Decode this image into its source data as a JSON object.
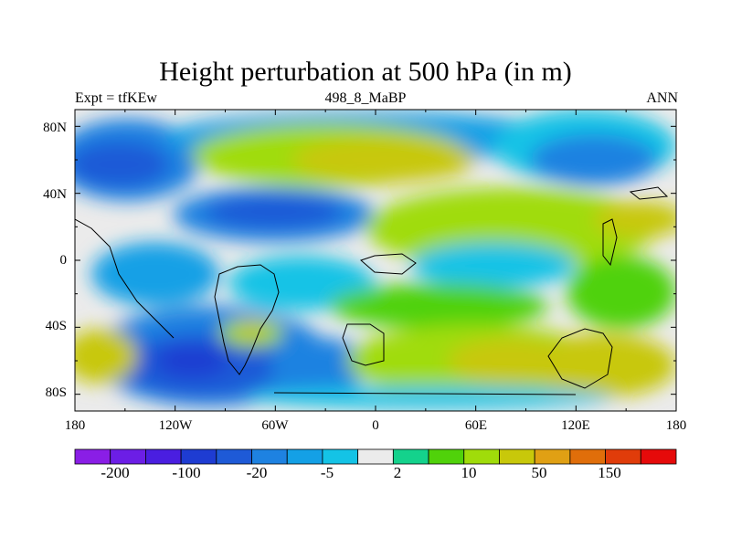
{
  "title": "Height perturbation at 500 hPa (in m)",
  "left_string": "Expt = tfKEw",
  "center_string": "498_8_MaBP",
  "right_string": "ANN",
  "lat_labels": [
    "80N",
    "40N",
    "0",
    "40S",
    "80S"
  ],
  "lon_labels": [
    "180",
    "120W",
    "60W",
    "0",
    "60E",
    "120E",
    "180"
  ],
  "colorbar": {
    "labels": [
      "-200",
      "-100",
      "-20",
      "-5",
      "2",
      "10",
      "50",
      "150"
    ],
    "colors": [
      "#8a1ee6",
      "#6c1ee6",
      "#4a1ee0",
      "#1e3cd2",
      "#1e5ad7",
      "#1e82e1",
      "#14a0e6",
      "#14c3e6",
      "#ebebeb",
      "#14d28c",
      "#50d20a",
      "#a0dc0a",
      "#c8c80a",
      "#e0a014",
      "#e06e0a",
      "#e03c0a",
      "#e60a0a"
    ]
  },
  "field_colors": {
    "land": "#ebebeb"
  }
}
